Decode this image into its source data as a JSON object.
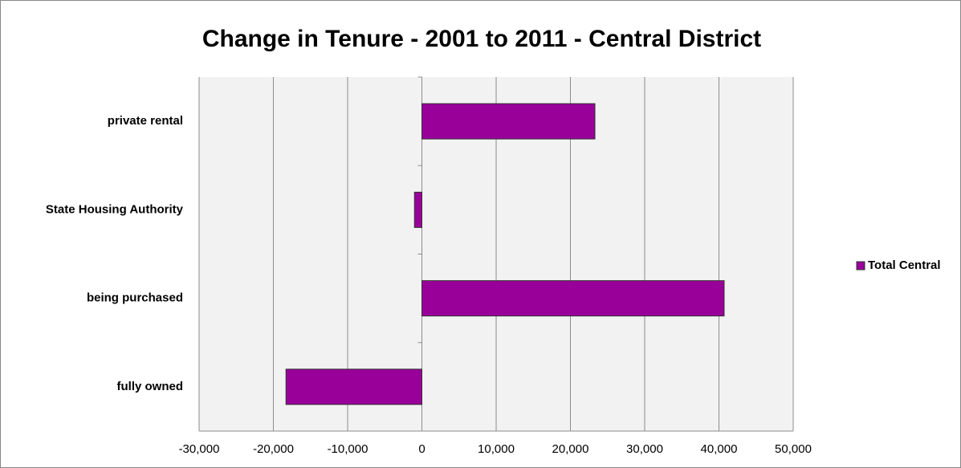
{
  "chart_data": {
    "type": "barh",
    "title": "Change in Tenure - 2001 to 2011 - Central District",
    "categories": [
      "private rental",
      "State Housing Authority",
      "being purchased",
      "fully owned"
    ],
    "series": [
      {
        "name": "Total Central",
        "color": "#990099",
        "values": [
          23300,
          -1000,
          40700,
          -18300
        ]
      }
    ],
    "xlim": [
      -30000,
      50000
    ],
    "xticks": [
      {
        "value": -30000,
        "label": "-30,000"
      },
      {
        "value": -20000,
        "label": "-20,000"
      },
      {
        "value": -10000,
        "label": "-10,000"
      },
      0,
      {
        "value": 10000,
        "label": "10,000"
      },
      {
        "value": 20000,
        "label": "20,000"
      },
      {
        "value": 30000,
        "label": "30,000"
      },
      {
        "value": 40000,
        "label": "40,000"
      },
      {
        "value": 50000,
        "label": "50,000"
      }
    ],
    "grid": true,
    "legend": "right"
  }
}
